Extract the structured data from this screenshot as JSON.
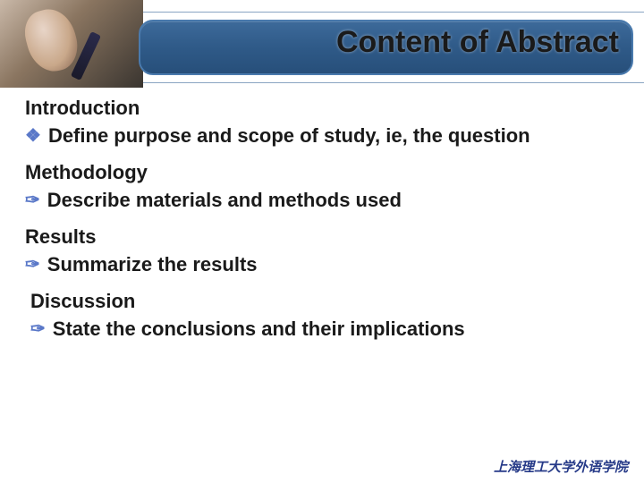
{
  "colors": {
    "title_band_gradient_top": "#3d6a9a",
    "title_band_gradient_bottom": "#274f7a",
    "title_band_border": "#4a7aad",
    "bullet_icon": "#5a78c8",
    "text": "#1a1a1a",
    "footer_text": "#263a88",
    "thin_line": "#8aa5c2",
    "background": "#ffffff"
  },
  "typography": {
    "title_fontsize": 34,
    "body_fontsize": 22,
    "footer_fontsize": 15,
    "font_family": "Arial"
  },
  "title": "Content of Abstract",
  "sections": [
    {
      "heading": "Introduction",
      "bullet_style": "diamond",
      "items": [
        "Define purpose and scope of study, ie, the question"
      ]
    },
    {
      "heading": "Methodology",
      "bullet_style": "script",
      "items": [
        "Describe materials and methods used"
      ]
    },
    {
      "heading": "Results",
      "bullet_style": "script",
      "items": [
        "Summarize the results"
      ]
    },
    {
      "heading": "Discussion",
      "bullet_style": "script",
      "items": [
        "State the conclusions and their implications"
      ]
    }
  ],
  "footer": "上海理工大学外语学院",
  "bullet_glyphs": {
    "diamond": "❖",
    "script": "✑"
  }
}
